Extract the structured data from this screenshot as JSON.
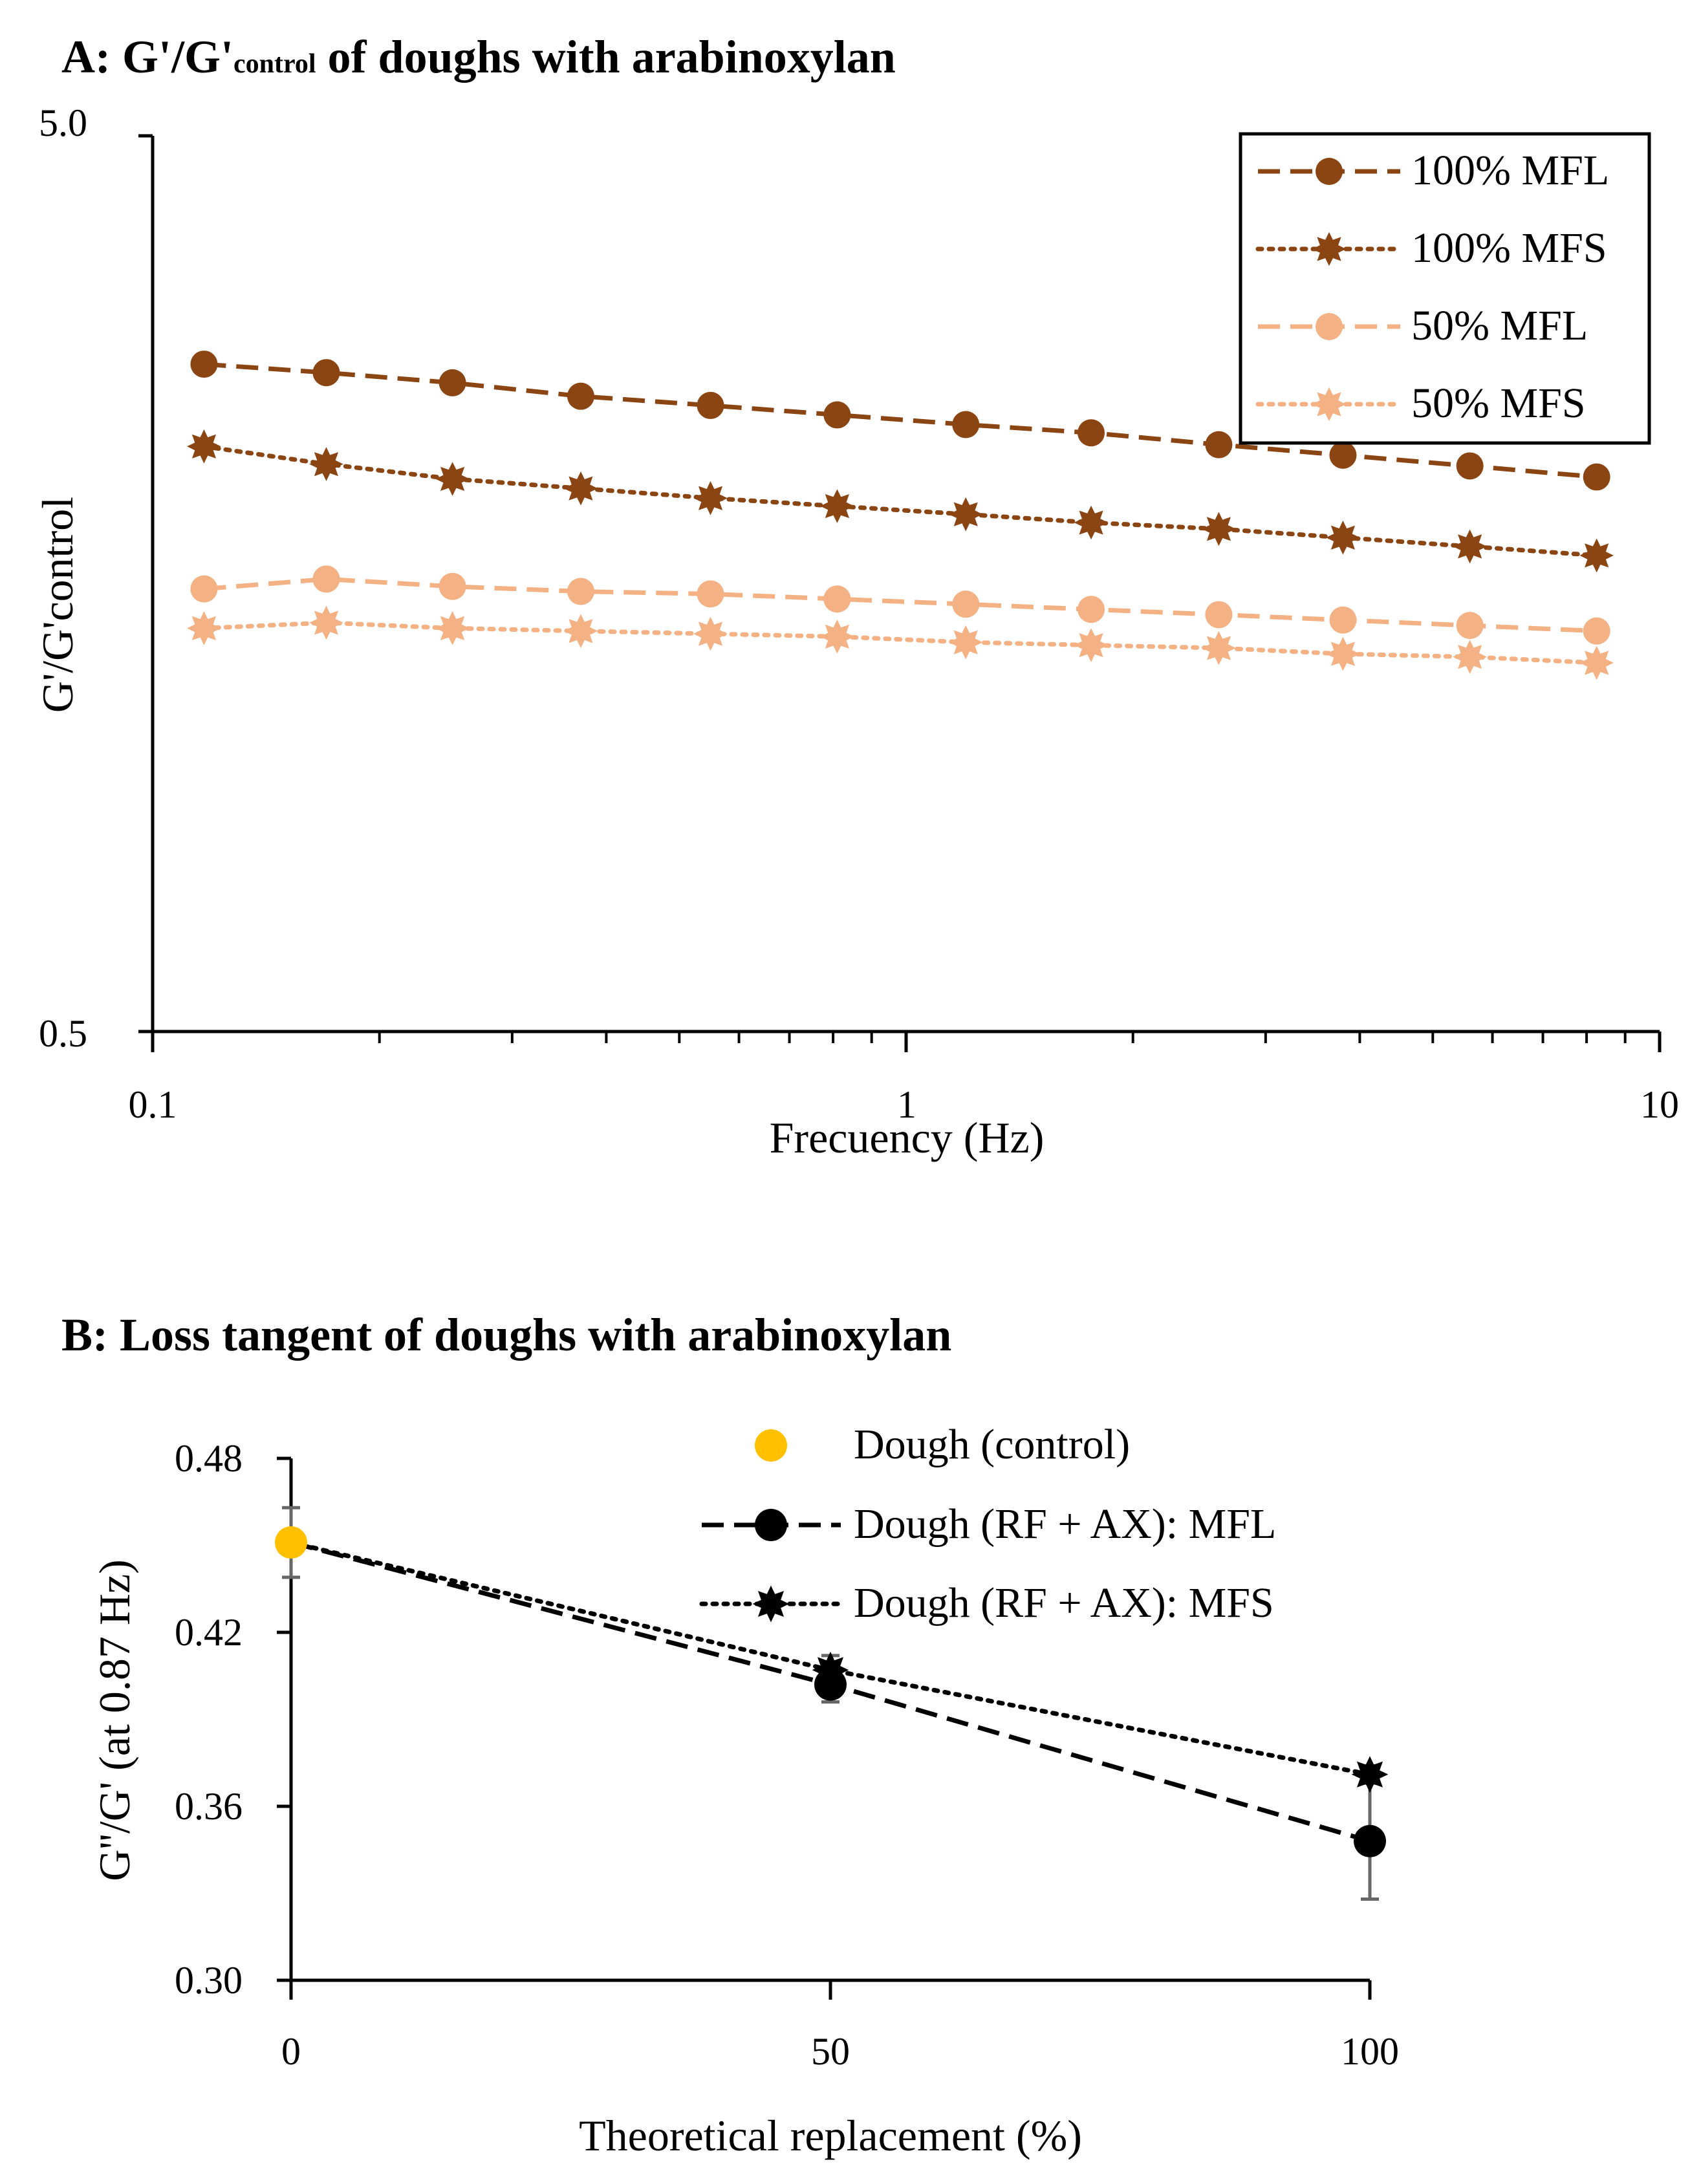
{
  "chart_data": [
    {
      "type": "line",
      "title_main": "A: G'/G'",
      "title_sub": "control",
      "title_rest": " of doughs with arabinoxylan",
      "xlabel": "Frecuency (Hz)",
      "ylabel": "G'/G'control",
      "xscale": "log",
      "yscale": "log",
      "xlim": [
        0.1,
        10
      ],
      "ylim": [
        0.5,
        5.0
      ],
      "xtick_labels": [
        "0.1",
        "1",
        "10"
      ],
      "ytick_labels": [
        "0.5",
        "5.0"
      ],
      "legend_position": "top-right",
      "x": [
        0.117,
        0.17,
        0.25,
        0.37,
        0.55,
        0.81,
        1.2,
        1.76,
        2.6,
        3.8,
        5.6,
        8.25
      ],
      "series": [
        {
          "name": "100% MFL",
          "color": "#8B4513",
          "dash": "long-dash",
          "marker": "circle",
          "values": [
            2.78,
            2.72,
            2.65,
            2.56,
            2.5,
            2.44,
            2.38,
            2.33,
            2.26,
            2.2,
            2.14,
            2.08
          ]
        },
        {
          "name": "100% MFS",
          "color": "#8B4513",
          "dash": "dotted",
          "marker": "star",
          "values": [
            2.25,
            2.15,
            2.07,
            2.02,
            1.97,
            1.93,
            1.89,
            1.85,
            1.82,
            1.78,
            1.74,
            1.7
          ]
        },
        {
          "name": "50% MFL",
          "color": "#F4B183",
          "dash": "long-dash",
          "marker": "circle",
          "values": [
            1.56,
            1.6,
            1.57,
            1.55,
            1.54,
            1.52,
            1.5,
            1.48,
            1.46,
            1.44,
            1.42,
            1.4
          ]
        },
        {
          "name": "50% MFS",
          "color": "#F4B183",
          "dash": "dotted",
          "marker": "star",
          "values": [
            1.41,
            1.43,
            1.41,
            1.4,
            1.39,
            1.38,
            1.36,
            1.35,
            1.34,
            1.32,
            1.31,
            1.29
          ]
        }
      ]
    },
    {
      "type": "scatter",
      "title": "B: Loss tangent of doughs with arabinoxylan",
      "xlabel": "Theoretical replacement (%)",
      "ylabel": "G''/G' (at 0.87 Hz)",
      "xlim": [
        0,
        100
      ],
      "ylim": [
        0.3,
        0.48
      ],
      "xtick_labels": [
        "0",
        "50",
        "100"
      ],
      "ytick_labels": [
        "0.30",
        "0.36",
        "0.42",
        "0.48"
      ],
      "legend_position": "top-right",
      "series": [
        {
          "name": "Dough (control)",
          "color": "#FFC000",
          "dash": "none",
          "marker": "circle",
          "x": [
            0
          ],
          "values": [
            0.451
          ],
          "errors": [
            0.012
          ]
        },
        {
          "name": "Dough (RF + AX): MFL",
          "color": "#000000",
          "dash": "long-dash",
          "marker": "circle",
          "x": [
            0,
            50,
            100
          ],
          "values": [
            0.451,
            0.402,
            0.348
          ],
          "errors": [
            0,
            0.006,
            0.02
          ]
        },
        {
          "name": "Dough (RF + AX): MFS",
          "color": "#000000",
          "dash": "dotted",
          "marker": "star",
          "x": [
            0,
            50,
            100
          ],
          "values": [
            0.451,
            0.407,
            0.371
          ],
          "errors": [
            0,
            0.005,
            0.003
          ]
        }
      ]
    }
  ]
}
